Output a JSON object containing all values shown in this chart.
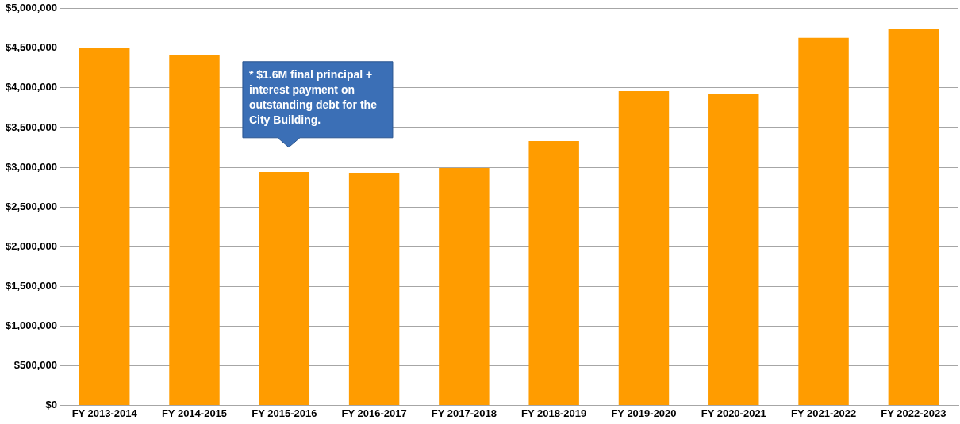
{
  "chart_data": {
    "type": "bar",
    "categories": [
      "FY 2013-2014",
      "FY 2014-2015",
      "FY 2015-2016",
      "FY 2016-2017",
      "FY 2017-2018",
      "FY 2018-2019",
      "FY 2019-2020",
      "FY 2020-2021",
      "FY 2021-2022",
      "FY 2022-2023"
    ],
    "values": [
      4500000,
      4410000,
      2940000,
      2930000,
      2990000,
      3330000,
      3960000,
      3920000,
      4630000,
      4740000
    ],
    "color": "#ff9c00",
    "ylim": [
      0,
      5000000
    ],
    "yticks": [
      {
        "value": 0,
        "label": "$0"
      },
      {
        "value": 500000,
        "label": "$500,000"
      },
      {
        "value": 1000000,
        "label": "$1,000,000"
      },
      {
        "value": 1500000,
        "label": "$1,500,000"
      },
      {
        "value": 2000000,
        "label": "$2,000,000"
      },
      {
        "value": 2500000,
        "label": "$2,500,000"
      },
      {
        "value": 3000000,
        "label": "$3,000,000"
      },
      {
        "value": 3500000,
        "label": "$3,500,000"
      },
      {
        "value": 4000000,
        "label": "$4,000,000"
      },
      {
        "value": 4500000,
        "label": "$4,500,000"
      },
      {
        "value": 5000000,
        "label": "$5,000,000"
      }
    ],
    "grid": "y",
    "legend": false,
    "annotations": [
      "* $1.6M final principal + interest payment on outstanding debt for the City Building."
    ]
  }
}
